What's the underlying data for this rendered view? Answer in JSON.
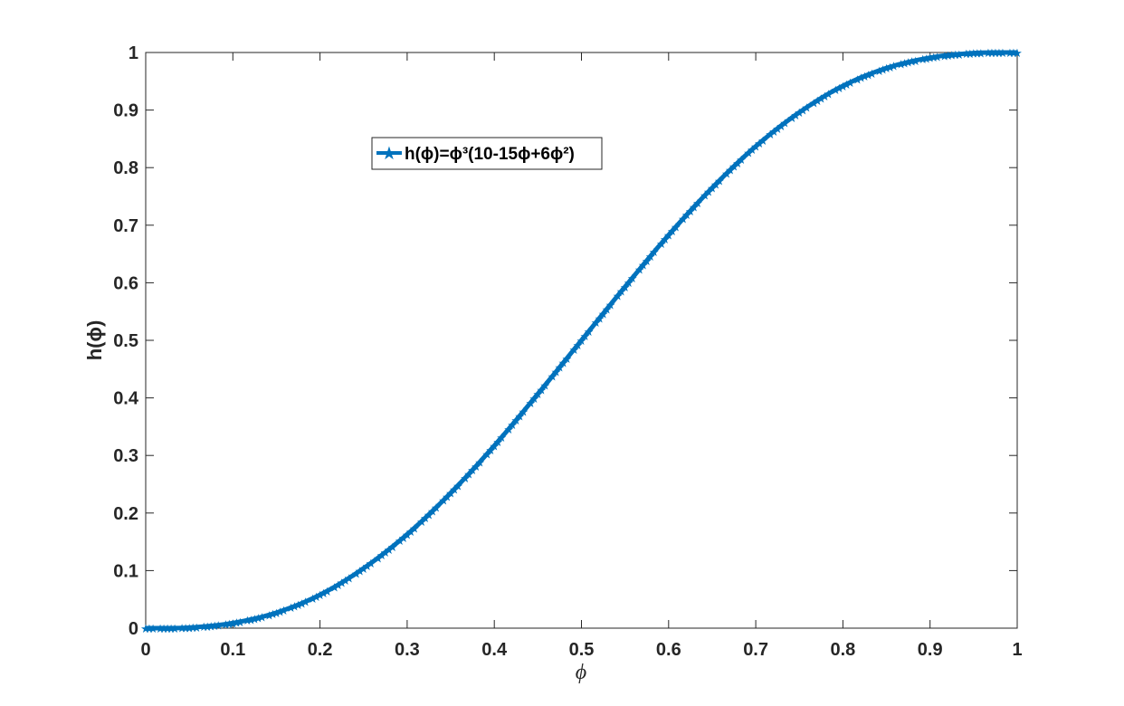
{
  "chart_data": {
    "type": "line",
    "title": "",
    "xlabel": "ϕ",
    "ylabel": "h(ϕ)",
    "xlim": [
      0,
      1
    ],
    "ylim": [
      0,
      1
    ],
    "x_ticks": [
      "0",
      "0.1",
      "0.2",
      "0.3",
      "0.4",
      "0.5",
      "0.6",
      "0.7",
      "0.8",
      "0.9",
      "1"
    ],
    "y_ticks": [
      "0",
      "0.1",
      "0.2",
      "0.3",
      "0.4",
      "0.5",
      "0.6",
      "0.7",
      "0.8",
      "0.9",
      "1"
    ],
    "grid": false,
    "legend": {
      "placement": "upper-left-inside",
      "text": "h(ϕ)=ϕ³(10-15ϕ+6ϕ²)"
    },
    "series": [
      {
        "name": "h(ϕ)=ϕ³(10-15ϕ+6ϕ²)",
        "color": "#0072BD",
        "marker": "star",
        "x": [
          0,
          0.05,
          0.1,
          0.15,
          0.2,
          0.25,
          0.3,
          0.35,
          0.4,
          0.45,
          0.5,
          0.55,
          0.6,
          0.65,
          0.7,
          0.75,
          0.8,
          0.85,
          0.9,
          0.95,
          1
        ],
        "y": [
          0,
          0.001,
          0.009,
          0.027,
          0.058,
          0.104,
          0.163,
          0.235,
          0.317,
          0.407,
          0.5,
          0.593,
          0.683,
          0.765,
          0.837,
          0.896,
          0.942,
          0.973,
          0.991,
          0.999,
          1
        ]
      }
    ]
  }
}
